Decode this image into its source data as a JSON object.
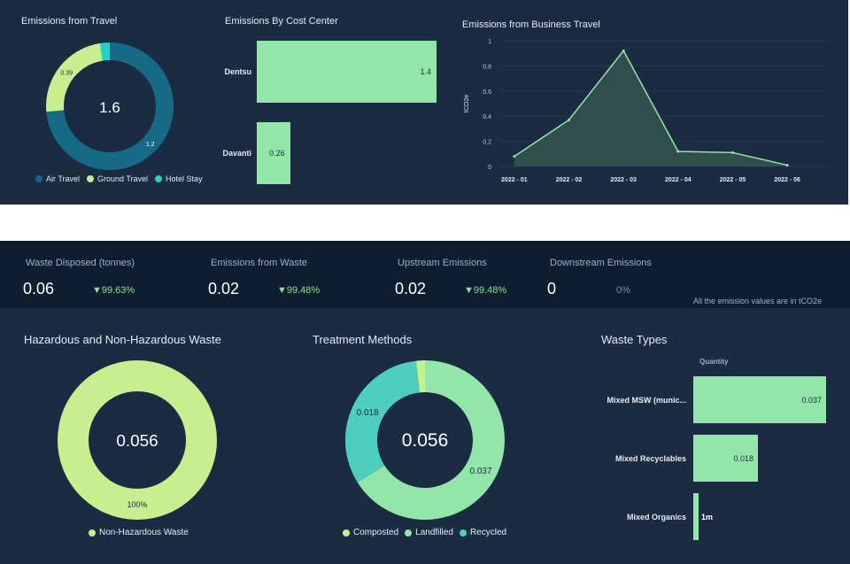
{
  "travel": {
    "title": "Emissions from Travel",
    "total": "1.6",
    "colors": {
      "Air Travel": "#176a86",
      "Ground Travel": "#c7ef8f",
      "Hotel Stay": "#1ed3c8"
    },
    "chart_data": {
      "type": "pie",
      "series": [
        {
          "name": "Air Travel",
          "value": 1.2,
          "label": "1.2"
        },
        {
          "name": "Ground Travel",
          "value": 0.39,
          "label": "0.39"
        },
        {
          "name": "Hotel Stay",
          "value": 0.04
        }
      ]
    },
    "legend": [
      "Air Travel",
      "Ground Travel",
      "Hotel Stay"
    ]
  },
  "cost_center": {
    "title": "Emissions By Cost Center",
    "chart_data": {
      "type": "bar",
      "categories": [
        "Dentsu",
        "Davanti"
      ],
      "values": [
        1.4,
        0.26
      ],
      "labels": [
        "1.4",
        "0.26"
      ]
    }
  },
  "business_travel": {
    "title": "Emissions from Business Travel",
    "chart_data": {
      "type": "area",
      "categories": [
        "2022 - 01",
        "2022 - 02",
        "2022 - 03",
        "2022 - 04",
        "2022 - 05",
        "2022 - 06"
      ],
      "values": [
        0.08,
        0.37,
        0.92,
        0.12,
        0.11,
        0.01
      ],
      "ylabel": "tCO2e",
      "ylim": [
        0,
        1
      ],
      "yticks": [
        "0",
        "0.2",
        "0.4",
        "0.6",
        "0.8",
        "1"
      ],
      "grid": true,
      "color": "#93e6a9"
    }
  },
  "kpis": [
    {
      "label": "Waste Disposed (tonnes)",
      "value": "0.06",
      "delta": "▼99.63%"
    },
    {
      "label": "Emissions from Waste",
      "value": "0.02",
      "delta": "▼99.48%"
    },
    {
      "label": "Upstream Emissions",
      "value": "0.02",
      "delta": "▼99.48%"
    },
    {
      "label": "Downstream Emissions",
      "value": "0",
      "delta": "0%"
    }
  ],
  "kpi_note": "All the emission values are in tCO2e",
  "hazard": {
    "title": "Hazardous and Non-Hazardous Waste",
    "total": "0.056",
    "chart_data": {
      "type": "pie",
      "series": [
        {
          "name": "Non-Hazardous Waste",
          "value": 100,
          "label": "100%"
        }
      ]
    },
    "legend": [
      "Non-Hazardous Waste"
    ],
    "color": "#c7ef8f"
  },
  "treatment": {
    "title": "Treatment Methods",
    "total": "0.056",
    "colors": {
      "Composted": "#c7ef8f",
      "Landfilled": "#93e6a9",
      "Recycled": "#4ecfbd"
    },
    "chart_data": {
      "type": "pie",
      "series": [
        {
          "name": "Landfilled",
          "value": 0.037,
          "label": "0.037"
        },
        {
          "name": "Recycled",
          "value": 0.018,
          "label": "0.018"
        },
        {
          "name": "Composted",
          "value": 0.001
        }
      ]
    },
    "legend": [
      "Composted",
      "Landfilled",
      "Recycled"
    ]
  },
  "waste_types": {
    "title": "Waste Types",
    "column": "Quantity",
    "chart_data": {
      "type": "bar",
      "categories": [
        "Mixed MSW (munic...",
        "Mixed Recyclables",
        "Mixed Organics"
      ],
      "values": [
        0.037,
        0.018,
        0.001
      ],
      "labels": [
        "0.037",
        "0.018",
        "1m"
      ]
    }
  }
}
